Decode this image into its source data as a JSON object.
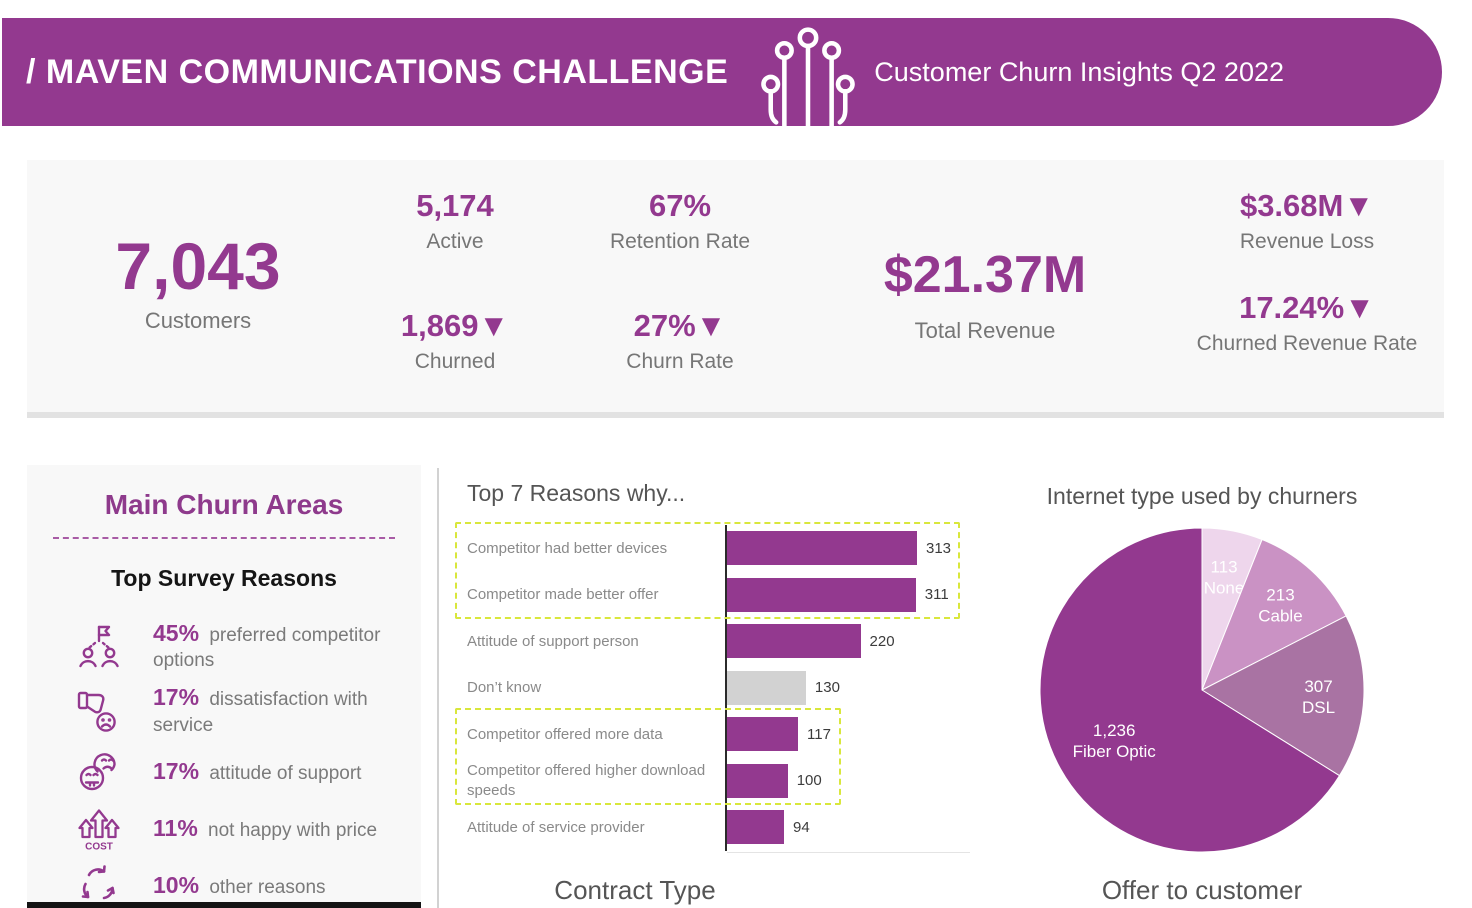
{
  "header": {
    "title": "/ MAVEN COMMUNICATIONS CHALLENGE",
    "subtitle": "Customer Churn Insights Q2 2022",
    "icon": "circuit-icon",
    "bg_color": "#93398f"
  },
  "kpis": {
    "customers": {
      "value": "7,043",
      "label": "Customers"
    },
    "active": {
      "value": "5,174",
      "label": "Active"
    },
    "churned": {
      "value": "1,869▼",
      "label": "Churned"
    },
    "retention_rate": {
      "value": "67%",
      "label": "Retention Rate"
    },
    "churn_rate": {
      "value": "27%▼",
      "label": "Churn Rate"
    },
    "total_revenue": {
      "value": "$21.37M",
      "label": "Total Revenue"
    },
    "revenue_loss": {
      "value": "$3.68M▼",
      "label": "Revenue Loss"
    },
    "churned_revenue_rate": {
      "value": "17.24%▼",
      "label": "Churned Revenue Rate"
    }
  },
  "churn_areas": {
    "title": "Main Churn Areas",
    "subtitle": "Top Survey Reasons",
    "reasons": [
      {
        "icon": "competitor-people-flag-icon",
        "pct": "45%",
        "text": "preferred competitor options"
      },
      {
        "icon": "thumbs-down-sad-face-icon",
        "pct": "17%",
        "text": "dissatisfaction with service"
      },
      {
        "icon": "unhappy-faces-icon",
        "pct": "17%",
        "text": "attitude of support"
      },
      {
        "icon": "cost-rising-arrows-icon",
        "pct": "11%",
        "text": "not happy with price"
      },
      {
        "icon": "cycle-arrows-icon",
        "pct": "10%",
        "text": "other reasons"
      }
    ]
  },
  "chart_data": [
    {
      "type": "bar",
      "title": "Top 7 Reasons why...",
      "orientation": "horizontal",
      "categories": [
        "Competitor had better devices",
        "Competitor made better offer",
        "Attitude of support person",
        "Don’t know",
        "Competitor offered more data",
        "Competitor offered higher download speeds",
        "Attitude of service provider"
      ],
      "values": [
        313,
        311,
        220,
        130,
        117,
        100,
        94
      ],
      "value_labels": [
        "313",
        "311",
        "220",
        "130",
        "117",
        "100",
        "94"
      ],
      "bar_colors": [
        "#93398f",
        "#93398f",
        "#93398f",
        "#d2d2d2",
        "#93398f",
        "#93398f",
        "#93398f"
      ],
      "xlim": [
        0,
        330
      ],
      "grid": false,
      "highlight_groups": [
        [
          0,
          1
        ],
        [
          4,
          5
        ]
      ],
      "highlight_color": "#d9e73c"
    },
    {
      "type": "pie",
      "title": "Internet type used by churners",
      "labels": [
        "None",
        "Cable",
        "DSL",
        "Fiber Optic"
      ],
      "values": [
        113,
        213,
        307,
        1236
      ],
      "value_labels": [
        "113",
        "213",
        "307",
        "1,236"
      ],
      "colors": [
        "#eed6ec",
        "#ca92c4",
        "#a973a3",
        "#93398f"
      ],
      "label_color": "#ffffff",
      "start_angle": "12-oclock",
      "direction": "clockwise"
    }
  ],
  "bottom_titles": {
    "contract_type": "Contract Type",
    "offer_to_customer": "Offer to customer"
  },
  "theme": {
    "accent": "#93398f",
    "gray_text": "#767676",
    "panel_bg": "#f8f8f8",
    "neutral_bar": "#d2d2d2",
    "highlight": "#d9e73c"
  }
}
